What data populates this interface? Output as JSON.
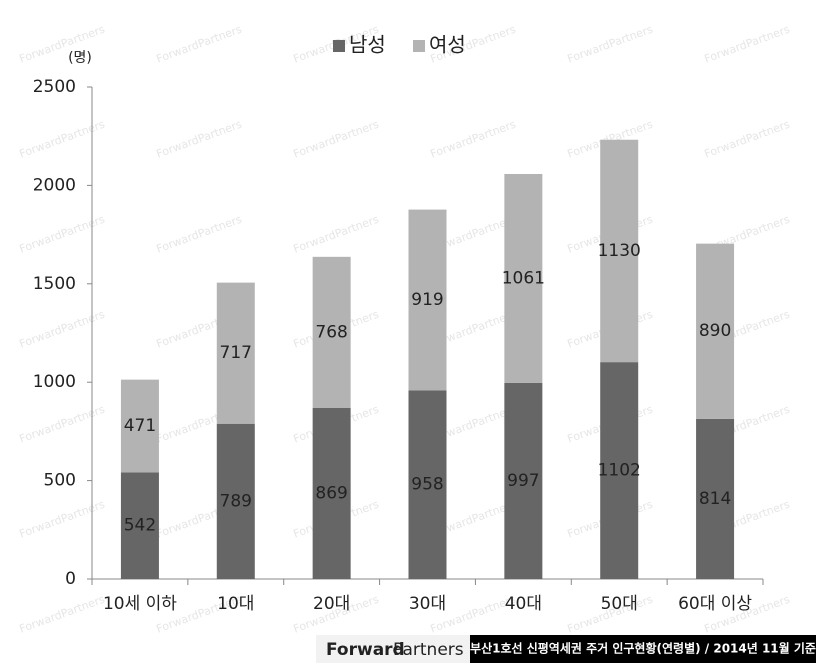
{
  "chart_data": {
    "type": "stacked_bar",
    "y_unit": "(명)",
    "categories": [
      "10세 이하",
      "10대",
      "20대",
      "30대",
      "40대",
      "50대",
      "60대 이상"
    ],
    "series": [
      {
        "name": "남성",
        "color": "#666666",
        "values": [
          542,
          789,
          869,
          958,
          997,
          1102,
          814
        ]
      },
      {
        "name": "여성",
        "color": "#b3b3b3",
        "values": [
          471,
          717,
          768,
          919,
          1061,
          1130,
          890
        ]
      }
    ],
    "ylim": [
      0,
      2500
    ],
    "yticks": [
      0,
      500,
      1000,
      1500,
      2000,
      2500
    ],
    "legend": "top"
  },
  "footer": {
    "logo_bold": "Forward",
    "logo_regular": "Partners",
    "caption": "부산1호선 신평역세권 주거 인구현황(연령별) / 2014년 11월 기준"
  },
  "watermark": "ForwardPartners"
}
